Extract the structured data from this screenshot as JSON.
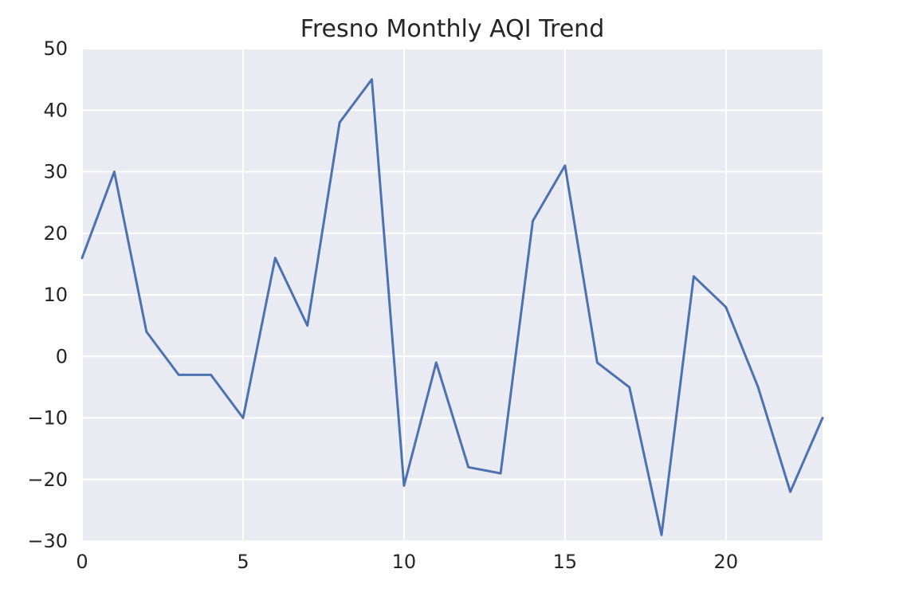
{
  "chart_data": {
    "type": "line",
    "title": "Fresno Monthly AQI Trend",
    "xlabel": "",
    "ylabel": "",
    "x": [
      0,
      1,
      2,
      3,
      4,
      5,
      6,
      7,
      8,
      9,
      10,
      11,
      12,
      13,
      14,
      15,
      16,
      17,
      18,
      19,
      20,
      21,
      22,
      23
    ],
    "series": [
      {
        "values": [
          16,
          30,
          4,
          -3,
          -3,
          -10,
          16,
          5,
          38,
          45,
          -21,
          -1,
          -18,
          -19,
          22,
          31,
          -1,
          -5,
          -29,
          13,
          8,
          -5,
          -22,
          -10
        ]
      }
    ],
    "xlim": [
      0,
      23
    ],
    "ylim": [
      -30,
      50
    ],
    "xticks": [
      0,
      5,
      10,
      15,
      20
    ],
    "yticks": [
      -30,
      -20,
      -10,
      0,
      10,
      20,
      30,
      40,
      50
    ],
    "xtick_labels": [
      "0",
      "5",
      "10",
      "15",
      "20"
    ],
    "ytick_labels": [
      "−30",
      "−20",
      "−10",
      "0",
      "10",
      "20",
      "30",
      "40",
      "50"
    ],
    "grid": true,
    "colors": {
      "line": "#4c72b0",
      "plot_background": "#eaeaf2",
      "grid": "#ffffff",
      "text": "#262626"
    }
  }
}
